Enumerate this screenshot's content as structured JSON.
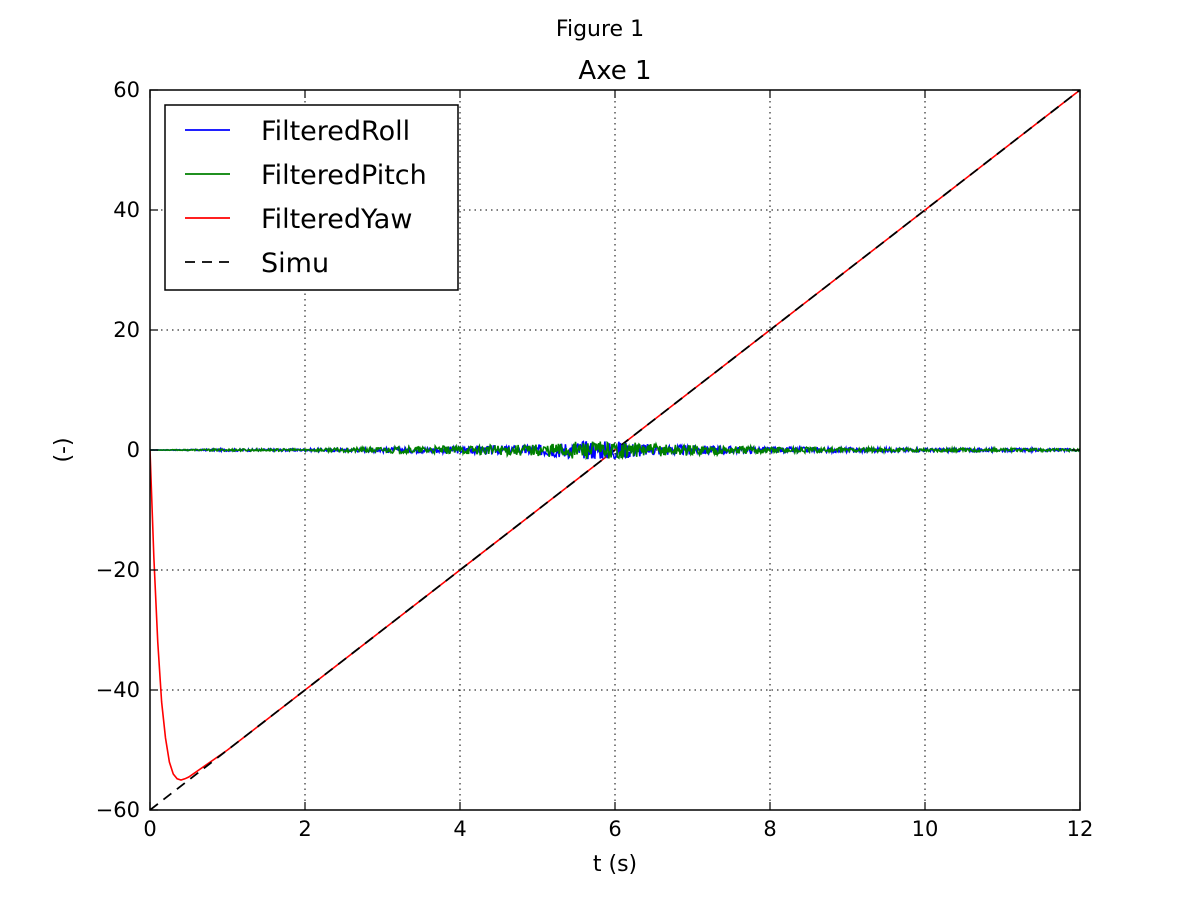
{
  "figure_title": "Figure 1",
  "chart_data": {
    "type": "line",
    "title": "Axe 1",
    "xlabel": "t (s)",
    "ylabel": "(-)",
    "xlim": [
      0,
      12
    ],
    "ylim": [
      -60,
      60
    ],
    "x_ticks": [
      0,
      2,
      4,
      6,
      8,
      10,
      12
    ],
    "y_ticks": [
      -60,
      -40,
      -20,
      0,
      20,
      40,
      60
    ],
    "x_tick_labels": [
      "0",
      "2",
      "4",
      "6",
      "8",
      "10",
      "12"
    ],
    "y_tick_labels": [
      "−60",
      "−40",
      "−20",
      "0",
      "20",
      "40",
      "60"
    ],
    "grid": true,
    "legend_position": "upper-left",
    "series": [
      {
        "name": "FilteredRoll",
        "color": "#0000ff",
        "style": "solid",
        "description_of_shape": "noise around 0",
        "x": [
          0,
          1,
          2,
          3,
          4,
          5,
          5.5,
          6,
          6.5,
          7,
          8,
          9,
          10,
          11,
          12
        ],
        "y": [
          0,
          0.2,
          0.2,
          0.4,
          0.6,
          0.9,
          1.5,
          1.6,
          0.9,
          0.8,
          0.5,
          0.4,
          0.3,
          0.3,
          0.2
        ]
      },
      {
        "name": "FilteredPitch",
        "color": "#008000",
        "style": "solid",
        "x": [
          0,
          1,
          2,
          3,
          4,
          5,
          5.5,
          6,
          6.5,
          7,
          8,
          9,
          10,
          11,
          12
        ],
        "y": [
          0,
          0.2,
          0.2,
          0.5,
          0.7,
          1.0,
          1.5,
          1.4,
          1.1,
          0.9,
          0.6,
          0.4,
          0.3,
          0.3,
          0.2
        ]
      },
      {
        "name": "FilteredYaw",
        "color": "#ff0000",
        "style": "solid",
        "x": [
          0,
          0.05,
          0.1,
          0.15,
          0.2,
          0.25,
          0.3,
          0.35,
          0.4,
          0.45,
          0.5,
          1,
          2,
          3,
          4,
          5,
          6,
          7,
          8,
          9,
          10,
          11,
          12
        ],
        "y": [
          0,
          -18,
          -32,
          -42,
          -48,
          -52,
          -54,
          -54.8,
          -55,
          -54.8,
          -54.5,
          -50,
          -40,
          -30,
          -20,
          -10,
          0,
          10,
          20,
          30,
          40,
          50,
          60
        ]
      },
      {
        "name": "Simu",
        "color": "#000000",
        "style": "dashed",
        "x": [
          0,
          12
        ],
        "y": [
          -60,
          60
        ]
      }
    ]
  }
}
